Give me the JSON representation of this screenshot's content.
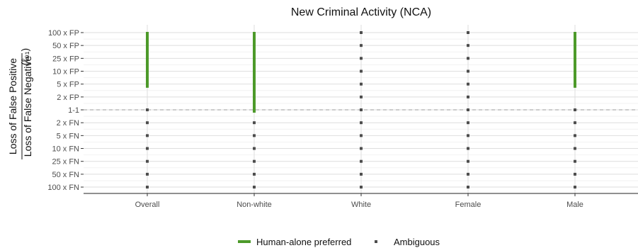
{
  "chart_data": {
    "type": "scatter",
    "title": "New Criminal Activity (NCA)",
    "ylabel_top": "Loss of False Positive",
    "ylabel_bottom": "Loss of False Negative",
    "ylabel_side": "(ℓ₀₁)",
    "categories": [
      "Overall",
      "Non-white",
      "White",
      "Female",
      "Male"
    ],
    "y_ticks": [
      "100 x FP",
      "50 x FP",
      "25 x FP",
      "10 x FP",
      "5 x FP",
      "2 x FP",
      "1-1",
      "2 x FN",
      "5 x FN",
      "10 x FN",
      "25 x FN",
      "50 x FN",
      "100 x FN"
    ],
    "reference_line": "1-1",
    "series": [
      {
        "name": "Human-alone preferred",
        "color": "#4d9a2a",
        "segments": [
          {
            "category": "Overall",
            "from": "2 x FP",
            "to": "100 x FP"
          },
          {
            "category": "Non-white",
            "from": "1-1",
            "to": "100 x FP"
          },
          {
            "category": "Male",
            "from": "2 x FP",
            "to": "100 x FP"
          }
        ]
      },
      {
        "name": "Ambiguous",
        "color": "#4d4d4d",
        "points": [
          {
            "category": "Overall",
            "levels": [
              "1-1",
              "2 x FN",
              "5 x FN",
              "10 x FN",
              "25 x FN",
              "50 x FN",
              "100 x FN"
            ]
          },
          {
            "category": "Non-white",
            "levels": [
              "2 x FN",
              "5 x FN",
              "10 x FN",
              "25 x FN",
              "50 x FN",
              "100 x FN"
            ]
          },
          {
            "category": "White",
            "levels": [
              "100 x FP",
              "50 x FP",
              "25 x FP",
              "10 x FP",
              "5 x FP",
              "2 x FP",
              "1-1",
              "2 x FN",
              "5 x FN",
              "10 x FN",
              "25 x FN",
              "50 x FN",
              "100 x FN"
            ]
          },
          {
            "category": "Female",
            "levels": [
              "100 x FP",
              "50 x FP",
              "25 x FP",
              "10 x FP",
              "5 x FP",
              "2 x FP",
              "1-1",
              "2 x FN",
              "5 x FN",
              "10 x FN",
              "25 x FN",
              "50 x FN",
              "100 x FN"
            ]
          },
          {
            "category": "Male",
            "levels": [
              "1-1",
              "2 x FN",
              "5 x FN",
              "10 x FN",
              "25 x FN",
              "50 x FN",
              "100 x FN"
            ]
          }
        ]
      }
    ],
    "legend_position": "bottom",
    "grid": true
  }
}
